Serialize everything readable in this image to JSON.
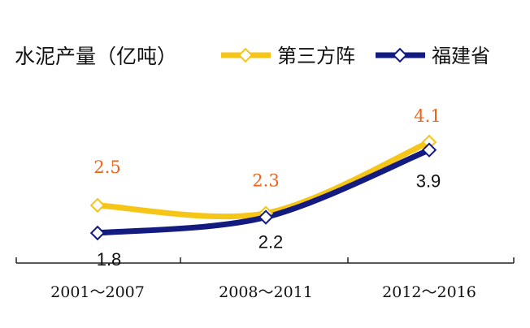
{
  "chart_data": {
    "type": "line",
    "title": "水泥产量（亿吨）",
    "categories": [
      "2001～2007",
      "2008～2011",
      "2012～2016"
    ],
    "series": [
      {
        "name": "第三方阵",
        "values": [
          2.5,
          2.3,
          4.1
        ],
        "color": "#F5C518",
        "label_color": "#E8661A",
        "labels": [
          "2.5",
          "2.3",
          "4.1"
        ]
      },
      {
        "name": "福建省",
        "values": [
          1.8,
          2.2,
          3.9
        ],
        "color": "#131A80",
        "label_color": "#111111",
        "labels": [
          "1.8",
          "2.2",
          "3.9"
        ]
      }
    ],
    "legend_position": "top",
    "grid": false
  }
}
